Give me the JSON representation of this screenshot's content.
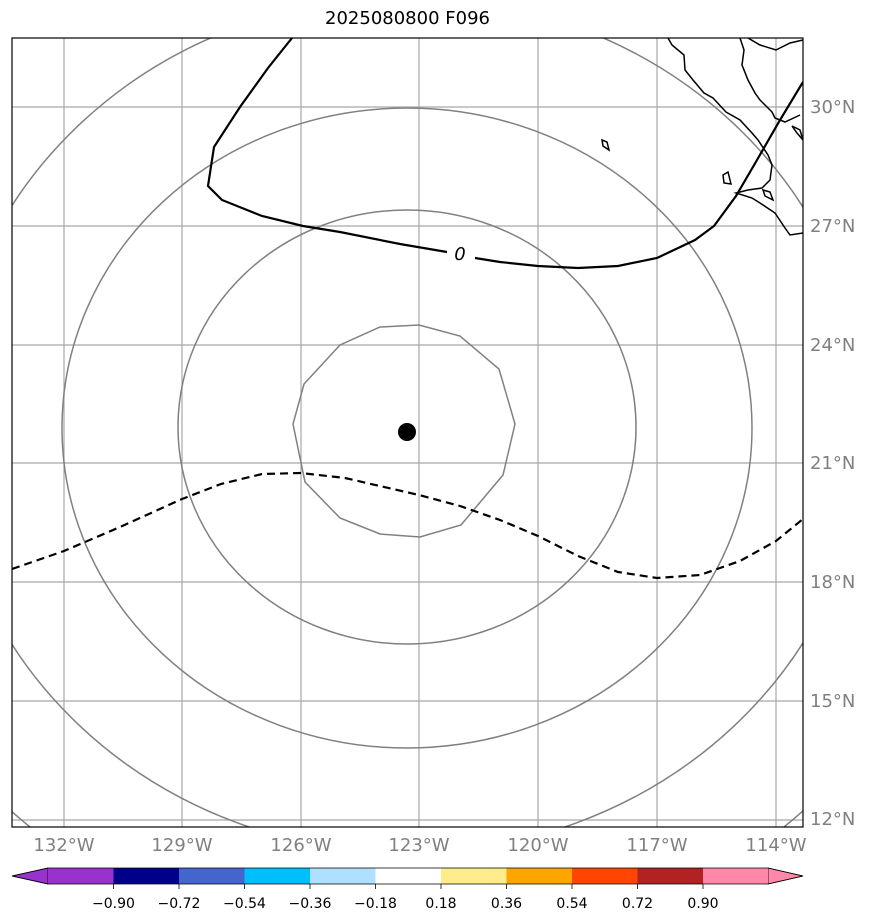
{
  "title": "2025080800 F096",
  "map": {
    "lon_ticks": [
      "132°W",
      "129°W",
      "126°W",
      "123°W",
      "120°W",
      "117°W",
      "114°W"
    ],
    "lat_ticks": [
      "30°N",
      "27°N",
      "24°N",
      "21°N",
      "18°N",
      "15°N",
      "12°N"
    ],
    "contour_label": "0",
    "grid": true,
    "center_marker": "filled-circle"
  },
  "colorbar": {
    "tick_labels": [
      "−0.90",
      "−0.72",
      "−0.54",
      "−0.36",
      "−0.18",
      "0.18",
      "0.36",
      "0.54",
      "0.72",
      "0.90"
    ],
    "colors": [
      "#9932CC",
      "#00008B",
      "#4466CC",
      "#00BFFF",
      "#B0E0FF",
      "#FFFFFF",
      "#FFEC8B",
      "#FFA500",
      "#FF4500",
      "#B22222",
      "#FF88AA"
    ],
    "extend": "both"
  }
}
